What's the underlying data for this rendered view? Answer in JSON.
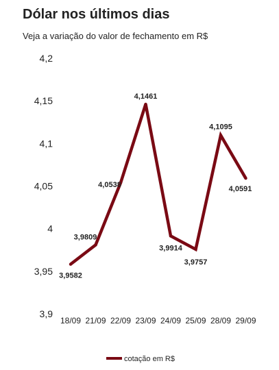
{
  "header": {
    "title": "Dólar nos últimos dias",
    "subtitle": "Veja a variação do valor de fechamento em R$"
  },
  "chart_data": {
    "type": "line",
    "title": "Dólar nos últimos dias",
    "subtitle": "Veja a variação do valor de fechamento em R$",
    "xlabel": "",
    "ylabel": "",
    "categories": [
      "18/09",
      "21/09",
      "22/09",
      "23/09",
      "24/09",
      "25/09",
      "28/09",
      "29/09"
    ],
    "series": [
      {
        "name": "cotação em R$",
        "values": [
          3.9582,
          3.9809,
          4.0538,
          4.1461,
          3.9914,
          3.9757,
          4.1095,
          4.0591
        ],
        "labels": [
          "3,9582",
          "3,9809",
          "4,0538",
          "4,1461",
          "3,9914",
          "3,9757",
          "4,1095",
          "4,0591"
        ],
        "color": "#7a0a14"
      }
    ],
    "ylim": [
      3.9,
      4.2
    ],
    "yticks": [
      3.9,
      3.95,
      4.0,
      4.05,
      4.1,
      4.15,
      4.2
    ],
    "ytick_labels": [
      "3,9",
      "3,95",
      "4",
      "4,05",
      "4,1",
      "4,15",
      "4,2"
    ],
    "grid": false,
    "legend": "bottom",
    "legend_label": "cotação em R$"
  }
}
